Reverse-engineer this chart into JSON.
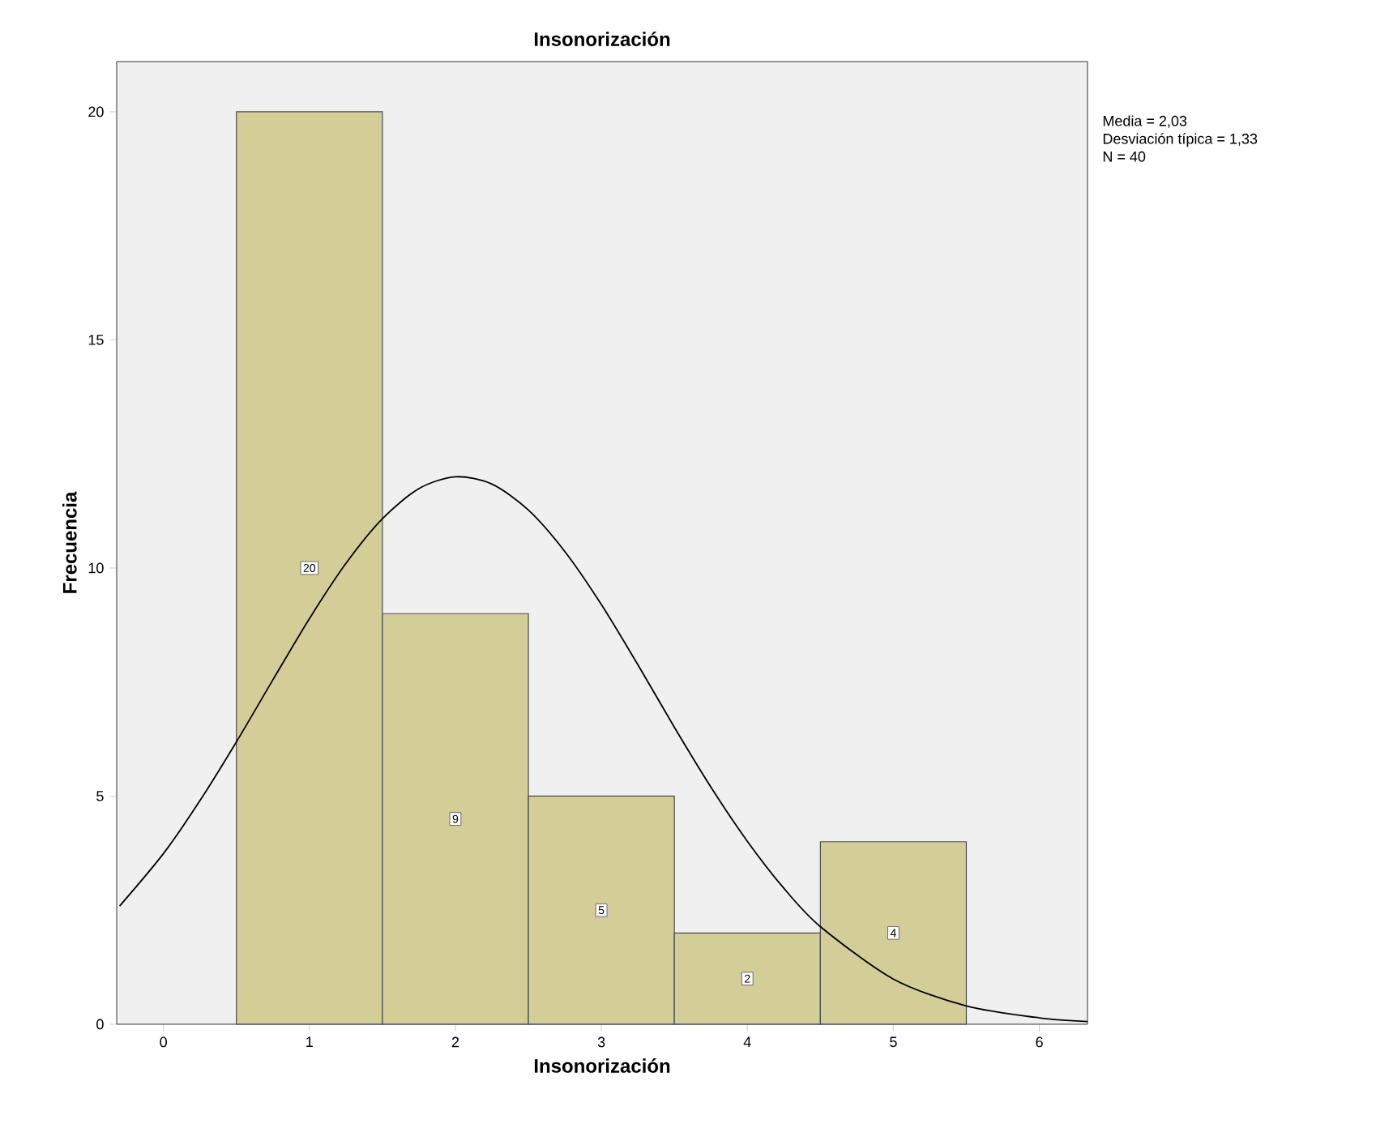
{
  "chart_data": {
    "type": "histogram",
    "title": "Insonorización",
    "xlabel": "Insonorización",
    "ylabel": "Frecuencia",
    "bins": [
      0.5,
      1.5,
      2.5,
      3.5,
      4.5,
      5.5
    ],
    "values": [
      20,
      9,
      5,
      2,
      4
    ],
    "color": "#d3ce98",
    "value_labels": [
      "20",
      "9",
      "5",
      "2",
      "4"
    ],
    "series": [
      {
        "type": "line",
        "color": "#000000",
        "x": [
          -0.3,
          0,
          0.25,
          0.5,
          0.75,
          1,
          1.25,
          1.5,
          1.75,
          2,
          2.25,
          2.5,
          2.75,
          3,
          3.25,
          3.5,
          3.75,
          4,
          4.25,
          4.5,
          5,
          5.5,
          6,
          6.33
        ],
        "values": [
          2.59,
          3.74,
          4.9,
          6.19,
          7.55,
          8.89,
          10.1,
          11.08,
          11.74,
          12.0,
          11.84,
          11.27,
          10.36,
          9.2,
          7.88,
          6.51,
          5.2,
          4.01,
          2.98,
          2.14,
          0.99,
          0.4,
          0.14,
          0.06
        ]
      }
    ],
    "xlim": [
      -0.32,
      6.33
    ],
    "ylim": [
      0,
      21.1
    ],
    "xticks": [
      0,
      1,
      2,
      3,
      4,
      5,
      6
    ],
    "yticks": [
      0,
      5,
      10,
      15,
      20
    ],
    "grid": false,
    "annotations": [
      "Media = 2,03",
      "Desviación típica = 1,33",
      "N = 40"
    ]
  }
}
